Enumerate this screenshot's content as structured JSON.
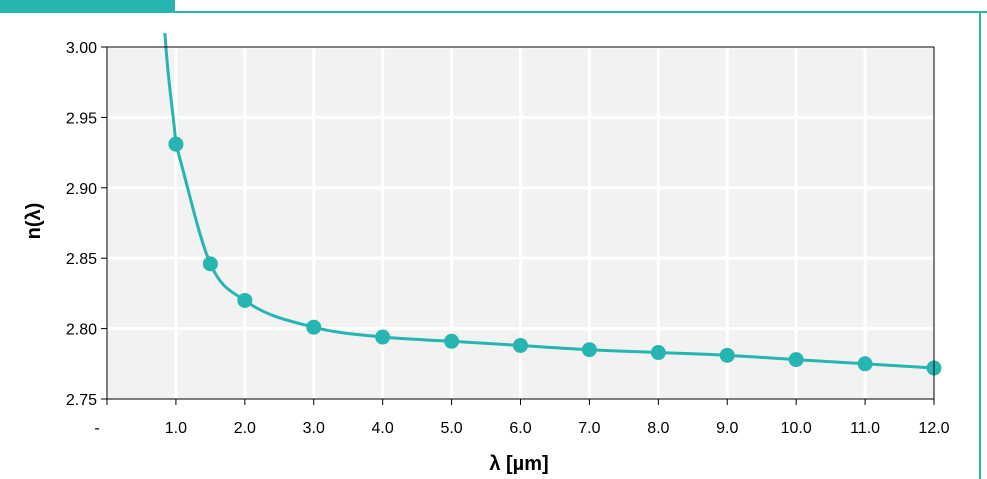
{
  "colors": {
    "accent": "#26b5b0",
    "plot_background": "#f2f2f2",
    "grid": "#ffffff",
    "axis": "#000000",
    "text": "#000000"
  },
  "chart_data": {
    "type": "line",
    "title": "",
    "xlabel": "λ [µm]",
    "ylabel": "n(λ)",
    "xlim": [
      0,
      12
    ],
    "ylim": [
      2.75,
      3.0
    ],
    "grid": true,
    "legend": "none",
    "x_ticks": [
      0,
      1,
      2,
      3,
      4,
      5,
      6,
      7,
      8,
      9,
      10,
      11,
      12
    ],
    "x_tick_labels": [
      "-",
      "1.0",
      "2.0",
      "3.0",
      "4.0",
      "5.0",
      "6.0",
      "7.0",
      "8.0",
      "9.0",
      "10.0",
      "11.0",
      "12.0"
    ],
    "y_ticks": [
      2.75,
      2.8,
      2.85,
      2.9,
      2.95,
      3.0
    ],
    "y_tick_labels": [
      "2.75",
      "2.80",
      "2.85",
      "2.90",
      "2.95",
      "3.00"
    ],
    "series": [
      {
        "markers": true,
        "smooth_line": true,
        "x": [
          1.0,
          1.5,
          2.0,
          3.0,
          4.0,
          5.0,
          6.0,
          7.0,
          8.0,
          9.0,
          10.0,
          11.0,
          12.0
        ],
        "y": [
          2.931,
          2.846,
          2.82,
          2.801,
          2.794,
          2.791,
          2.788,
          2.785,
          2.783,
          2.781,
          2.778,
          2.775,
          2.772
        ]
      }
    ]
  }
}
